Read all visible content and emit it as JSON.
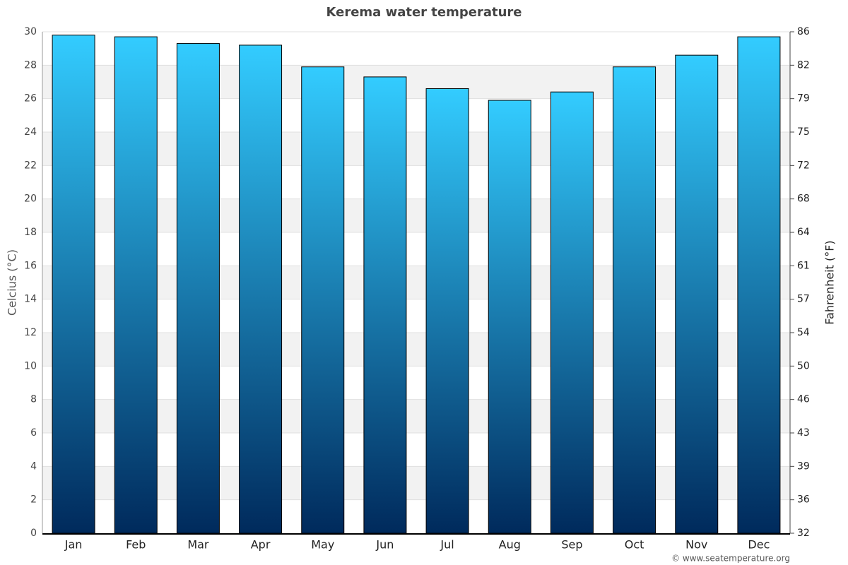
{
  "chart_data": {
    "type": "bar",
    "title": "Kerema water temperature",
    "y_label": "Celcius (°C)",
    "y2_label": "Fahrenheit (°F)",
    "categories": [
      "Jan",
      "Feb",
      "Mar",
      "Apr",
      "May",
      "Jun",
      "Jul",
      "Aug",
      "Sep",
      "Oct",
      "Nov",
      "Dec"
    ],
    "values": [
      29.8,
      29.7,
      29.3,
      29.2,
      27.9,
      27.3,
      26.6,
      25.9,
      26.4,
      27.9,
      28.6,
      29.7
    ],
    "gradient": [
      "#33ccff",
      "#002a5c"
    ],
    "ylim": [
      0,
      30
    ],
    "yticks": [
      0,
      2,
      4,
      6,
      8,
      10,
      12,
      14,
      16,
      18,
      20,
      22,
      24,
      26,
      28,
      30
    ],
    "y2lim": [
      32,
      86
    ],
    "y2ticks": [
      32,
      {
        "value": 35.6,
        "label": "36"
      },
      {
        "value": 39.2,
        "label": "39"
      },
      {
        "value": 42.8,
        "label": "43"
      },
      {
        "value": 46.4,
        "label": "46"
      },
      50,
      {
        "value": 53.6,
        "label": "54"
      },
      {
        "value": 57.2,
        "label": "57"
      },
      {
        "value": 60.8,
        "label": "61"
      },
      {
        "value": 64.4,
        "label": "64"
      },
      68,
      {
        "value": 71.6,
        "label": "72"
      },
      {
        "value": 75.2,
        "label": "75"
      },
      {
        "value": 78.8,
        "label": "79"
      },
      {
        "value": 82.4,
        "label": "82"
      },
      86
    ],
    "grid": true,
    "footer": "© www.seatemperature.org"
  }
}
